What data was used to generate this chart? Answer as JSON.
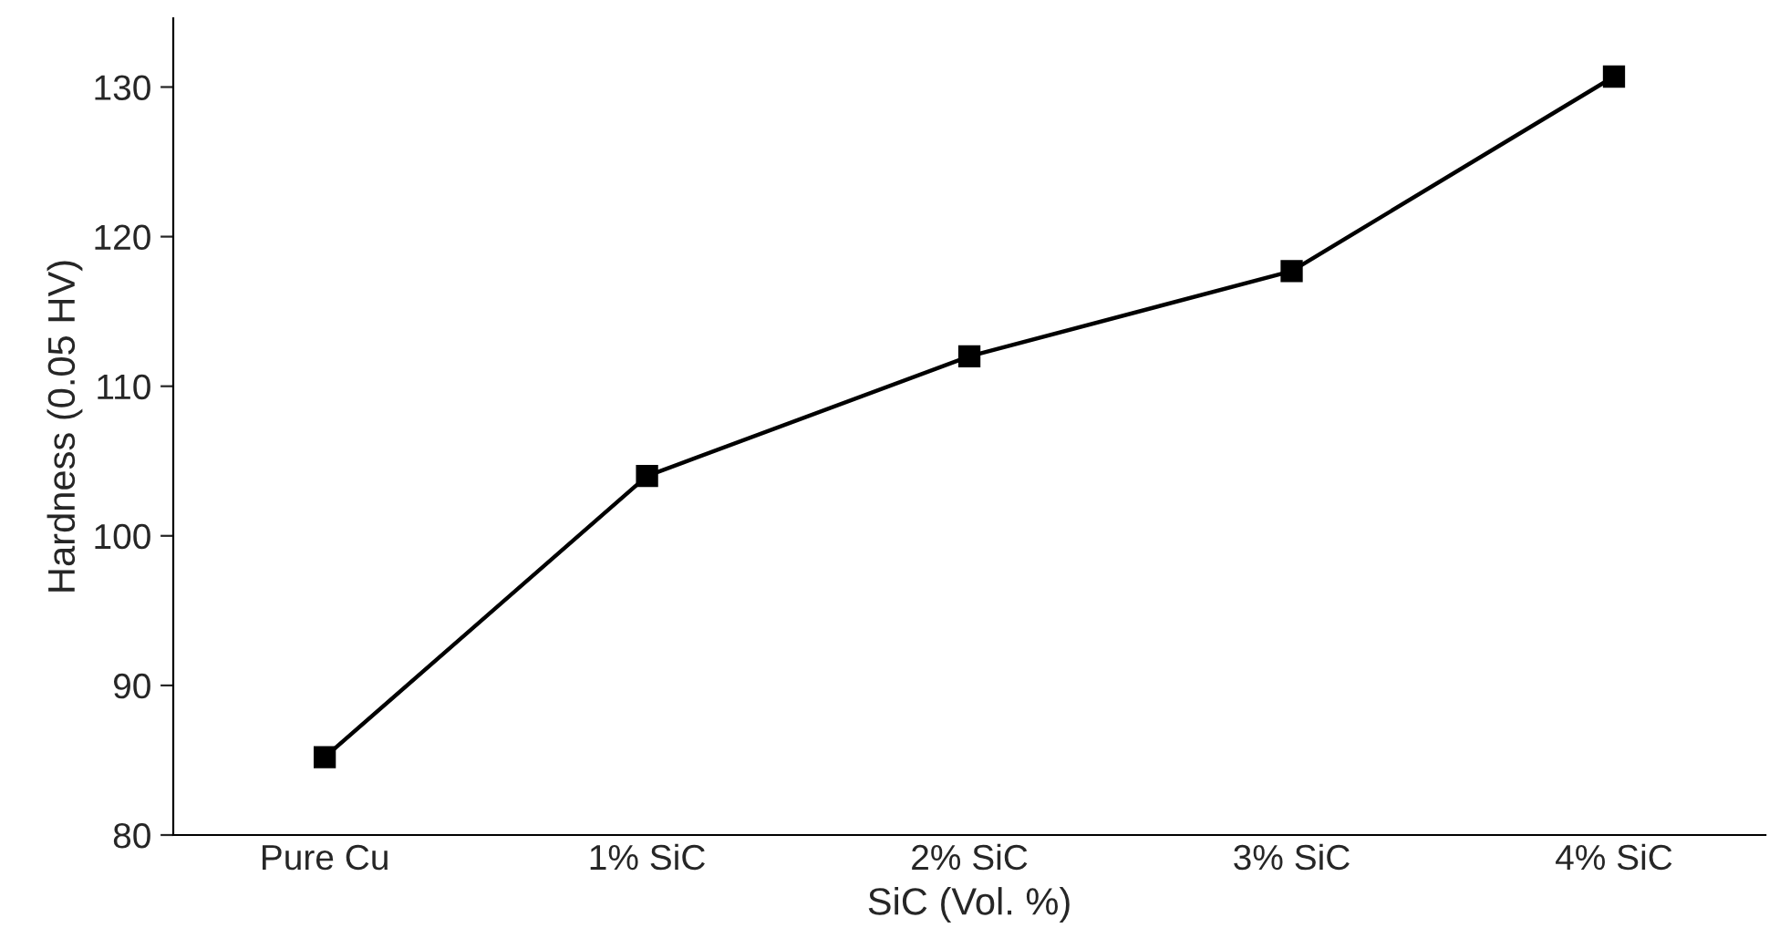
{
  "chart_data": {
    "type": "line",
    "xlabel": "SiC (Vol. %)",
    "ylabel": "Hardness (0.05 HV)",
    "categories": [
      "Pure Cu",
      "1% SiC",
      "2% SiC",
      "3% SiC",
      "4% SiC"
    ],
    "series": [
      {
        "color": "#000000",
        "values": [
          85.2,
          104,
          112,
          117.7,
          130.7
        ]
      }
    ],
    "ylim": [
      80,
      134.6
    ],
    "yticks": [
      80,
      90,
      100,
      110,
      120,
      130
    ],
    "marker": "square",
    "line_style": "solid",
    "grid": false
  }
}
